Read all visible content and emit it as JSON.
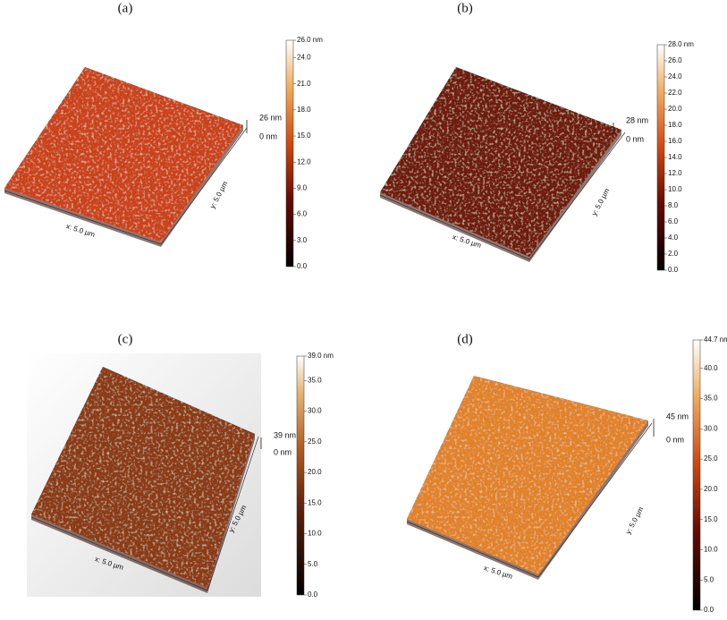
{
  "panels": [
    {
      "label": "(a)",
      "colorbar_ticks": [
        "26.0 nm",
        "24.0",
        "21.0",
        "18.0",
        "15.0",
        "12.0",
        "9.0",
        "6.0",
        "3.0",
        "0.0"
      ],
      "z_scale": [
        "26 nm",
        "0 nm"
      ],
      "x_axis": "x: 5.0 µm",
      "y_axis": "y: 5.0 µm"
    },
    {
      "label": "(b)",
      "colorbar_ticks": [
        "28.0 nm",
        "26.0",
        "24.0",
        "22.0",
        "20.0",
        "18.0",
        "16.0",
        "14.0",
        "12.0",
        "10.0",
        "8.0",
        "6.0",
        "4.0",
        "2.0",
        "0.0"
      ],
      "z_scale": [
        "28 nm",
        "0 nm"
      ],
      "x_axis": "x: 5.0 µm",
      "y_axis": "y: 5.0 µm"
    },
    {
      "label": "(c)",
      "colorbar_ticks": [
        "39.0 nm",
        "35.0",
        "30.0",
        "25.0",
        "20.0",
        "15.0",
        "10.0",
        "5.0",
        "0.0"
      ],
      "z_scale": [
        "39 nm",
        "0 nm"
      ],
      "x_axis": "x: 5.0 µm",
      "y_axis": "y: 5.0 µm"
    },
    {
      "label": "(d)",
      "colorbar_ticks": [
        "44.7 nm",
        "40.0",
        "35.0",
        "30.0",
        "25.0",
        "20.0",
        "15.0",
        "10.0",
        "5.0",
        "0.0"
      ],
      "z_scale": [
        "45 nm",
        "0 nm"
      ],
      "x_axis": "x: 5.0 µm",
      "y_axis": "y: 5.0 µm"
    }
  ]
}
